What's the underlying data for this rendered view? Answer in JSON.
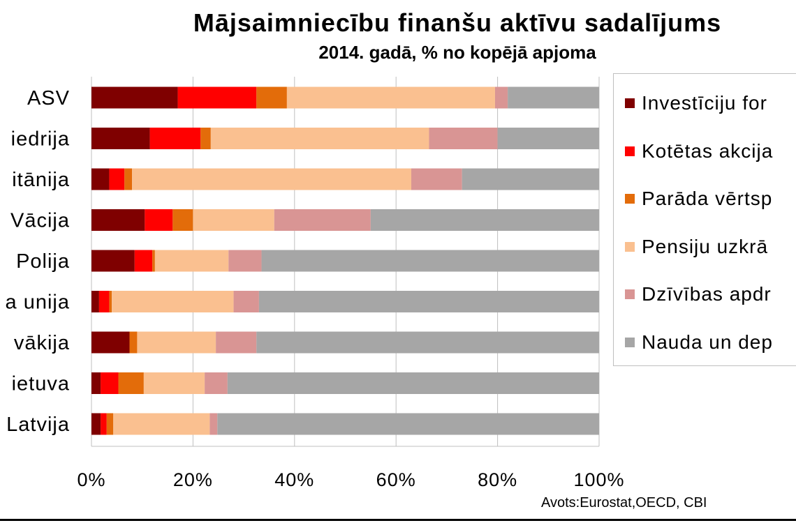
{
  "chart_data": {
    "type": "bar",
    "orientation": "horizontal",
    "stacked": true,
    "title": "Mājsaimniecību finanšu aktīvu sadalījums",
    "subtitle": "2014. gadā, % no kopējā apjoma",
    "categories": [
      "ASV",
      "iedrija",
      "itānija",
      "Vācija",
      "Polija",
      "a unija",
      "vākija",
      "ietuva",
      "Latvija"
    ],
    "series": [
      {
        "name": "Investīciju for",
        "color": "#7f0000",
        "values": [
          17,
          11.5,
          3.5,
          10.5,
          8.5,
          1.5,
          7.5,
          1.8,
          1.8
        ]
      },
      {
        "name": "Kotētas akcija",
        "color": "#ff0000",
        "values": [
          15.5,
          10,
          3,
          5.5,
          3.5,
          2,
          0,
          3.5,
          1.2
        ]
      },
      {
        "name": "Parāda vērtsp",
        "color": "#e36c0a",
        "values": [
          6,
          2,
          1.5,
          4,
          0.5,
          0.5,
          1.5,
          5,
          1.3
        ]
      },
      {
        "name": "Pensiju uzkrā",
        "color": "#fac090",
        "values": [
          41,
          43,
          55,
          16,
          14.5,
          24,
          15.5,
          12,
          19
        ]
      },
      {
        "name": "Dzīvības apdr",
        "color": "#d99594",
        "values": [
          2.5,
          13.5,
          10,
          19,
          6.5,
          5,
          8,
          4.5,
          1.5
        ]
      },
      {
        "name": "Nauda un dep",
        "color": "#a6a6a6",
        "values": [
          18,
          20,
          27,
          45,
          66.5,
          67,
          67.5,
          73.2,
          75.2
        ]
      }
    ],
    "xaxis": {
      "ticks": [
        "0%",
        "20%",
        "40%",
        "60%",
        "80%",
        "100%"
      ],
      "range": [
        0,
        100
      ]
    },
    "grid": true,
    "legend_position": "right"
  },
  "source": "Avots:Eurostat,OECD, CBI"
}
